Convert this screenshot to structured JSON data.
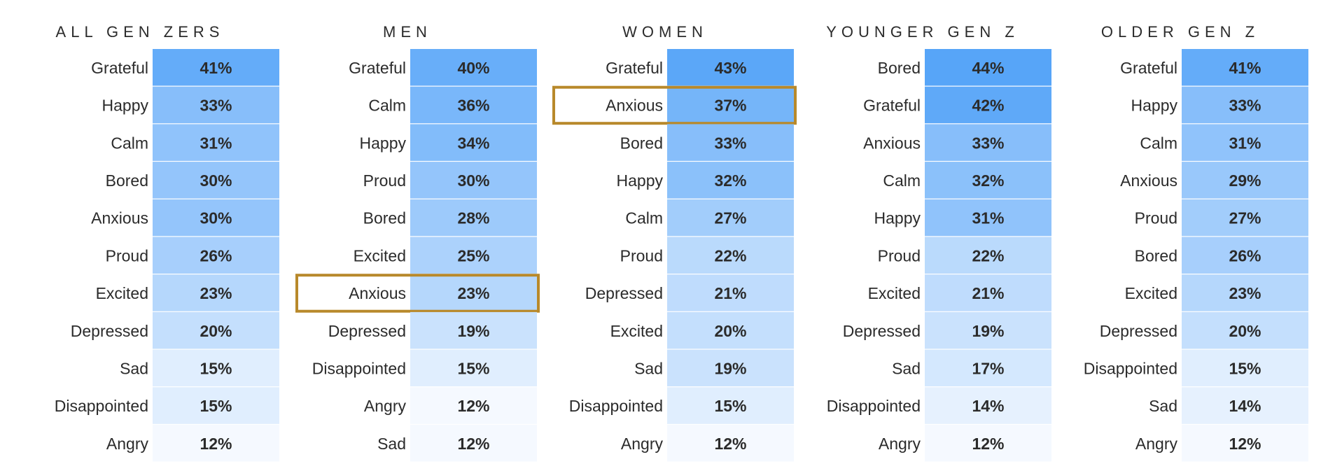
{
  "chart_data": {
    "type": "table",
    "title": "",
    "value_unit": "%",
    "scale": {
      "min_color": "#f5f9ff",
      "max_color": "#57a5f8",
      "min_value": 12,
      "max_value": 44
    },
    "highlight_color": "#b8892b",
    "panels": [
      {
        "title": "ALL GEN ZERS",
        "rows": [
          {
            "label": "Grateful",
            "value": 41
          },
          {
            "label": "Happy",
            "value": 33
          },
          {
            "label": "Calm",
            "value": 31
          },
          {
            "label": "Bored",
            "value": 30
          },
          {
            "label": "Anxious",
            "value": 30
          },
          {
            "label": "Proud",
            "value": 26
          },
          {
            "label": "Excited",
            "value": 23
          },
          {
            "label": "Depressed",
            "value": 20
          },
          {
            "label": "Sad",
            "value": 15
          },
          {
            "label": "Disappointed",
            "value": 15
          },
          {
            "label": "Angry",
            "value": 12
          }
        ]
      },
      {
        "title": "MEN",
        "highlight_row": "Anxious",
        "rows": [
          {
            "label": "Grateful",
            "value": 40
          },
          {
            "label": "Calm",
            "value": 36
          },
          {
            "label": "Happy",
            "value": 34
          },
          {
            "label": "Proud",
            "value": 30
          },
          {
            "label": "Bored",
            "value": 28
          },
          {
            "label": "Excited",
            "value": 25
          },
          {
            "label": "Anxious",
            "value": 23
          },
          {
            "label": "Depressed",
            "value": 19
          },
          {
            "label": "Disappointed",
            "value": 15
          },
          {
            "label": "Angry",
            "value": 12
          },
          {
            "label": "Sad",
            "value": 12
          }
        ]
      },
      {
        "title": "WOMEN",
        "highlight_row": "Anxious",
        "rows": [
          {
            "label": "Grateful",
            "value": 43
          },
          {
            "label": "Anxious",
            "value": 37
          },
          {
            "label": "Bored",
            "value": 33
          },
          {
            "label": "Happy",
            "value": 32
          },
          {
            "label": "Calm",
            "value": 27
          },
          {
            "label": "Proud",
            "value": 22
          },
          {
            "label": "Depressed",
            "value": 21
          },
          {
            "label": "Excited",
            "value": 20
          },
          {
            "label": "Sad",
            "value": 19
          },
          {
            "label": "Disappointed",
            "value": 15
          },
          {
            "label": "Angry",
            "value": 12
          }
        ]
      },
      {
        "title": "YOUNGER GEN Z",
        "rows": [
          {
            "label": "Bored",
            "value": 44
          },
          {
            "label": "Grateful",
            "value": 42
          },
          {
            "label": "Anxious",
            "value": 33
          },
          {
            "label": "Calm",
            "value": 32
          },
          {
            "label": "Happy",
            "value": 31
          },
          {
            "label": "Proud",
            "value": 22
          },
          {
            "label": "Excited",
            "value": 21
          },
          {
            "label": "Depressed",
            "value": 19
          },
          {
            "label": "Sad",
            "value": 17
          },
          {
            "label": "Disappointed",
            "value": 14
          },
          {
            "label": "Angry",
            "value": 12
          }
        ]
      },
      {
        "title": "OLDER GEN Z",
        "rows": [
          {
            "label": "Grateful",
            "value": 41
          },
          {
            "label": "Happy",
            "value": 33
          },
          {
            "label": "Calm",
            "value": 31
          },
          {
            "label": "Anxious",
            "value": 29
          },
          {
            "label": "Proud",
            "value": 27
          },
          {
            "label": "Bored",
            "value": 26
          },
          {
            "label": "Excited",
            "value": 23
          },
          {
            "label": "Depressed",
            "value": 20
          },
          {
            "label": "Disappointed",
            "value": 15
          },
          {
            "label": "Sad",
            "value": 14
          },
          {
            "label": "Angry",
            "value": 12
          }
        ]
      }
    ]
  }
}
